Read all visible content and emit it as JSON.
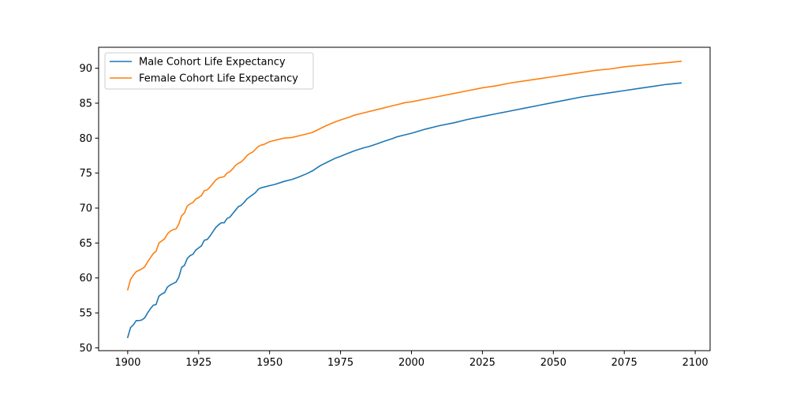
{
  "chart_data": {
    "type": "line",
    "title": "",
    "xlabel": "",
    "ylabel": "",
    "xlim": [
      1889.75,
      2105.25
    ],
    "ylim": [
      49.6,
      93.0
    ],
    "xticks": [
      1900,
      1925,
      1950,
      1975,
      2000,
      2025,
      2050,
      2075,
      2100
    ],
    "yticks": [
      50,
      55,
      60,
      65,
      70,
      75,
      80,
      85,
      90
    ],
    "grid": false,
    "legend_position": "top-left",
    "series": [
      {
        "name": "Male Cohort Life Expectancy",
        "color": "#1f77b4",
        "points": [
          [
            1900,
            51.5
          ],
          [
            1901,
            52.9
          ],
          [
            1902,
            53.3
          ],
          [
            1903,
            53.9
          ],
          [
            1904,
            53.9
          ],
          [
            1905,
            54.0
          ],
          [
            1906,
            54.3
          ],
          [
            1907,
            55.0
          ],
          [
            1908,
            55.6
          ],
          [
            1909,
            56.1
          ],
          [
            1910,
            56.2
          ],
          [
            1911,
            57.4
          ],
          [
            1912,
            57.7
          ],
          [
            1913,
            57.9
          ],
          [
            1914,
            58.7
          ],
          [
            1915,
            59.0
          ],
          [
            1916,
            59.2
          ],
          [
            1917,
            59.4
          ],
          [
            1918,
            60.1
          ],
          [
            1919,
            61.5
          ],
          [
            1920,
            61.8
          ],
          [
            1921,
            62.8
          ],
          [
            1922,
            63.2
          ],
          [
            1923,
            63.4
          ],
          [
            1924,
            64.0
          ],
          [
            1925,
            64.3
          ],
          [
            1926,
            64.6
          ],
          [
            1927,
            65.4
          ],
          [
            1928,
            65.5
          ],
          [
            1929,
            66.0
          ],
          [
            1930,
            66.6
          ],
          [
            1931,
            67.2
          ],
          [
            1932,
            67.6
          ],
          [
            1933,
            67.9
          ],
          [
            1934,
            67.9
          ],
          [
            1935,
            68.5
          ],
          [
            1936,
            68.7
          ],
          [
            1937,
            69.2
          ],
          [
            1938,
            69.7
          ],
          [
            1939,
            70.2
          ],
          [
            1940,
            70.4
          ],
          [
            1941,
            70.8
          ],
          [
            1942,
            71.3
          ],
          [
            1943,
            71.6
          ],
          [
            1944,
            71.9
          ],
          [
            1945,
            72.2
          ],
          [
            1946,
            72.7
          ],
          [
            1947,
            72.9
          ],
          [
            1948,
            73.0
          ],
          [
            1950,
            73.2
          ],
          [
            1952,
            73.4
          ],
          [
            1955,
            73.8
          ],
          [
            1958,
            74.1
          ],
          [
            1960,
            74.4
          ],
          [
            1963,
            74.9
          ],
          [
            1965,
            75.3
          ],
          [
            1968,
            76.1
          ],
          [
            1970,
            76.5
          ],
          [
            1973,
            77.1
          ],
          [
            1975,
            77.4
          ],
          [
            1978,
            77.9
          ],
          [
            1980,
            78.2
          ],
          [
            1983,
            78.6
          ],
          [
            1985,
            78.8
          ],
          [
            1988,
            79.2
          ],
          [
            1990,
            79.5
          ],
          [
            1993,
            79.9
          ],
          [
            1995,
            80.2
          ],
          [
            1998,
            80.5
          ],
          [
            2000,
            80.7
          ],
          [
            2005,
            81.3
          ],
          [
            2010,
            81.8
          ],
          [
            2015,
            82.2
          ],
          [
            2020,
            82.7
          ],
          [
            2025,
            83.1
          ],
          [
            2030,
            83.5
          ],
          [
            2035,
            83.9
          ],
          [
            2040,
            84.3
          ],
          [
            2045,
            84.7
          ],
          [
            2050,
            85.1
          ],
          [
            2055,
            85.5
          ],
          [
            2060,
            85.9
          ],
          [
            2065,
            86.2
          ],
          [
            2070,
            86.5
          ],
          [
            2075,
            86.8
          ],
          [
            2080,
            87.1
          ],
          [
            2085,
            87.4
          ],
          [
            2090,
            87.7
          ],
          [
            2095,
            87.9
          ]
        ]
      },
      {
        "name": "Female Cohort Life Expectancy",
        "color": "#ff7f0e",
        "points": [
          [
            1900,
            58.3
          ],
          [
            1901,
            59.8
          ],
          [
            1902,
            60.4
          ],
          [
            1903,
            60.9
          ],
          [
            1904,
            61.1
          ],
          [
            1905,
            61.3
          ],
          [
            1906,
            61.6
          ],
          [
            1907,
            62.3
          ],
          [
            1908,
            62.9
          ],
          [
            1909,
            63.5
          ],
          [
            1910,
            63.8
          ],
          [
            1911,
            65.0
          ],
          [
            1912,
            65.3
          ],
          [
            1913,
            65.6
          ],
          [
            1914,
            66.3
          ],
          [
            1915,
            66.7
          ],
          [
            1916,
            66.9
          ],
          [
            1917,
            67.0
          ],
          [
            1918,
            67.7
          ],
          [
            1919,
            68.9
          ],
          [
            1920,
            69.3
          ],
          [
            1921,
            70.3
          ],
          [
            1922,
            70.6
          ],
          [
            1923,
            70.8
          ],
          [
            1924,
            71.3
          ],
          [
            1925,
            71.5
          ],
          [
            1926,
            71.8
          ],
          [
            1927,
            72.5
          ],
          [
            1928,
            72.6
          ],
          [
            1929,
            73.0
          ],
          [
            1930,
            73.5
          ],
          [
            1931,
            74.0
          ],
          [
            1932,
            74.3
          ],
          [
            1933,
            74.4
          ],
          [
            1934,
            74.5
          ],
          [
            1935,
            75.0
          ],
          [
            1936,
            75.2
          ],
          [
            1937,
            75.6
          ],
          [
            1938,
            76.1
          ],
          [
            1939,
            76.4
          ],
          [
            1940,
            76.6
          ],
          [
            1941,
            77.0
          ],
          [
            1942,
            77.5
          ],
          [
            1943,
            77.8
          ],
          [
            1944,
            78.0
          ],
          [
            1945,
            78.4
          ],
          [
            1946,
            78.8
          ],
          [
            1947,
            79.0
          ],
          [
            1948,
            79.1
          ],
          [
            1950,
            79.5
          ],
          [
            1952,
            79.7
          ],
          [
            1955,
            80.0
          ],
          [
            1958,
            80.1
          ],
          [
            1960,
            80.3
          ],
          [
            1963,
            80.6
          ],
          [
            1965,
            80.8
          ],
          [
            1968,
            81.4
          ],
          [
            1970,
            81.8
          ],
          [
            1973,
            82.3
          ],
          [
            1975,
            82.6
          ],
          [
            1978,
            83.0
          ],
          [
            1980,
            83.3
          ],
          [
            1983,
            83.6
          ],
          [
            1985,
            83.8
          ],
          [
            1988,
            84.1
          ],
          [
            1990,
            84.3
          ],
          [
            1993,
            84.6
          ],
          [
            1995,
            84.8
          ],
          [
            1998,
            85.1
          ],
          [
            2000,
            85.2
          ],
          [
            2005,
            85.6
          ],
          [
            2010,
            86.0
          ],
          [
            2015,
            86.4
          ],
          [
            2020,
            86.8
          ],
          [
            2025,
            87.2
          ],
          [
            2030,
            87.5
          ],
          [
            2035,
            87.9
          ],
          [
            2040,
            88.2
          ],
          [
            2045,
            88.5
          ],
          [
            2050,
            88.8
          ],
          [
            2055,
            89.1
          ],
          [
            2060,
            89.4
          ],
          [
            2065,
            89.7
          ],
          [
            2070,
            89.9
          ],
          [
            2075,
            90.2
          ],
          [
            2080,
            90.4
          ],
          [
            2085,
            90.6
          ],
          [
            2090,
            90.8
          ],
          [
            2095,
            91.0
          ]
        ]
      }
    ]
  }
}
